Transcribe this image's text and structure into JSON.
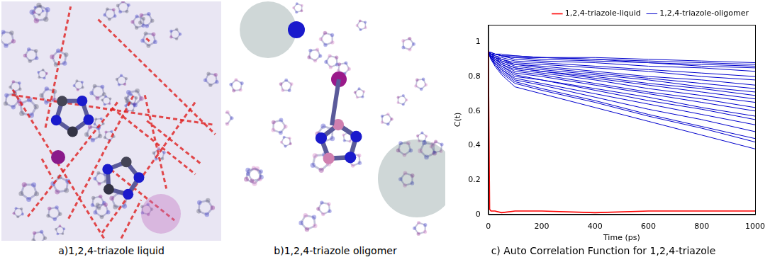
{
  "figure": {
    "panels": [
      {
        "caption": "a)1,2,4-triazole liquid"
      },
      {
        "caption": "b)1,2,4-triazole oligomer"
      }
    ]
  },
  "chart_data": {
    "type": "line",
    "title": "c) Auto Correlation Function for 1,2,4-triazole",
    "x_label": "Time (ps)",
    "y_label": "C(t)",
    "x": [
      0,
      5,
      10,
      25,
      50,
      100,
      200,
      400,
      600,
      800,
      1000
    ],
    "xlim": [
      0,
      1000
    ],
    "xticks": [
      0,
      200,
      400,
      600,
      800,
      1000
    ],
    "ylim": [
      0,
      1.1
    ],
    "yticks": [
      0,
      0.2,
      0.4,
      0.6,
      0.8,
      1
    ],
    "grid": false,
    "legend": "top",
    "series": [
      {
        "name": "1,2,4-triazole-liquid",
        "color": "#ff0000",
        "values": [
          0.95,
          0.03,
          0.02,
          0.02,
          0.01,
          0.02,
          0.02,
          0.01,
          0.02,
          0.02,
          0.02
        ]
      },
      {
        "name": "1,2,4-triazole-oligomer",
        "color": "#0000cc",
        "values": [
          [
            0.94,
            0.94,
            0.94,
            0.93,
            0.93,
            0.92,
            0.91,
            0.91,
            0.9,
            0.89,
            0.88
          ],
          [
            0.94,
            0.94,
            0.94,
            0.93,
            0.92,
            0.92,
            0.91,
            0.9,
            0.89,
            0.88,
            0.87
          ],
          [
            0.94,
            0.94,
            0.93,
            0.93,
            0.92,
            0.91,
            0.91,
            0.9,
            0.88,
            0.87,
            0.86
          ],
          [
            0.94,
            0.94,
            0.93,
            0.93,
            0.92,
            0.91,
            0.9,
            0.89,
            0.88,
            0.86,
            0.85
          ],
          [
            0.94,
            0.94,
            0.93,
            0.93,
            0.92,
            0.9,
            0.89,
            0.88,
            0.86,
            0.85,
            0.83
          ],
          [
            0.94,
            0.94,
            0.93,
            0.92,
            0.91,
            0.89,
            0.88,
            0.86,
            0.84,
            0.82,
            0.8
          ],
          [
            0.94,
            0.93,
            0.93,
            0.92,
            0.9,
            0.88,
            0.87,
            0.85,
            0.83,
            0.8,
            0.78
          ],
          [
            0.94,
            0.93,
            0.93,
            0.91,
            0.9,
            0.87,
            0.86,
            0.83,
            0.8,
            0.78,
            0.75
          ],
          [
            0.94,
            0.93,
            0.93,
            0.91,
            0.89,
            0.87,
            0.85,
            0.82,
            0.79,
            0.76,
            0.73
          ],
          [
            0.94,
            0.93,
            0.92,
            0.91,
            0.89,
            0.86,
            0.84,
            0.81,
            0.78,
            0.74,
            0.71
          ],
          [
            0.94,
            0.93,
            0.92,
            0.91,
            0.88,
            0.85,
            0.83,
            0.8,
            0.76,
            0.73,
            0.69
          ],
          [
            0.94,
            0.93,
            0.92,
            0.9,
            0.88,
            0.85,
            0.83,
            0.79,
            0.75,
            0.71,
            0.67
          ],
          [
            0.94,
            0.93,
            0.92,
            0.9,
            0.87,
            0.84,
            0.82,
            0.78,
            0.73,
            0.69,
            0.65
          ],
          [
            0.94,
            0.93,
            0.92,
            0.9,
            0.87,
            0.83,
            0.81,
            0.76,
            0.71,
            0.67,
            0.62
          ],
          [
            0.94,
            0.93,
            0.92,
            0.89,
            0.86,
            0.82,
            0.8,
            0.75,
            0.7,
            0.65,
            0.6
          ],
          [
            0.94,
            0.93,
            0.91,
            0.89,
            0.86,
            0.81,
            0.78,
            0.73,
            0.68,
            0.62,
            0.57
          ],
          [
            0.94,
            0.93,
            0.91,
            0.89,
            0.85,
            0.8,
            0.78,
            0.72,
            0.66,
            0.61,
            0.55
          ],
          [
            0.94,
            0.93,
            0.91,
            0.88,
            0.84,
            0.79,
            0.76,
            0.7,
            0.64,
            0.58,
            0.52
          ],
          [
            0.94,
            0.92,
            0.91,
            0.88,
            0.84,
            0.78,
            0.75,
            0.68,
            0.61,
            0.55,
            0.48
          ],
          [
            0.94,
            0.92,
            0.91,
            0.87,
            0.83,
            0.77,
            0.73,
            0.66,
            0.58,
            0.51,
            0.44
          ],
          [
            0.94,
            0.92,
            0.9,
            0.87,
            0.82,
            0.76,
            0.72,
            0.65,
            0.57,
            0.5,
            0.42
          ],
          [
            0.94,
            0.92,
            0.9,
            0.86,
            0.81,
            0.74,
            0.7,
            0.62,
            0.54,
            0.46,
            0.38
          ]
        ]
      }
    ]
  }
}
